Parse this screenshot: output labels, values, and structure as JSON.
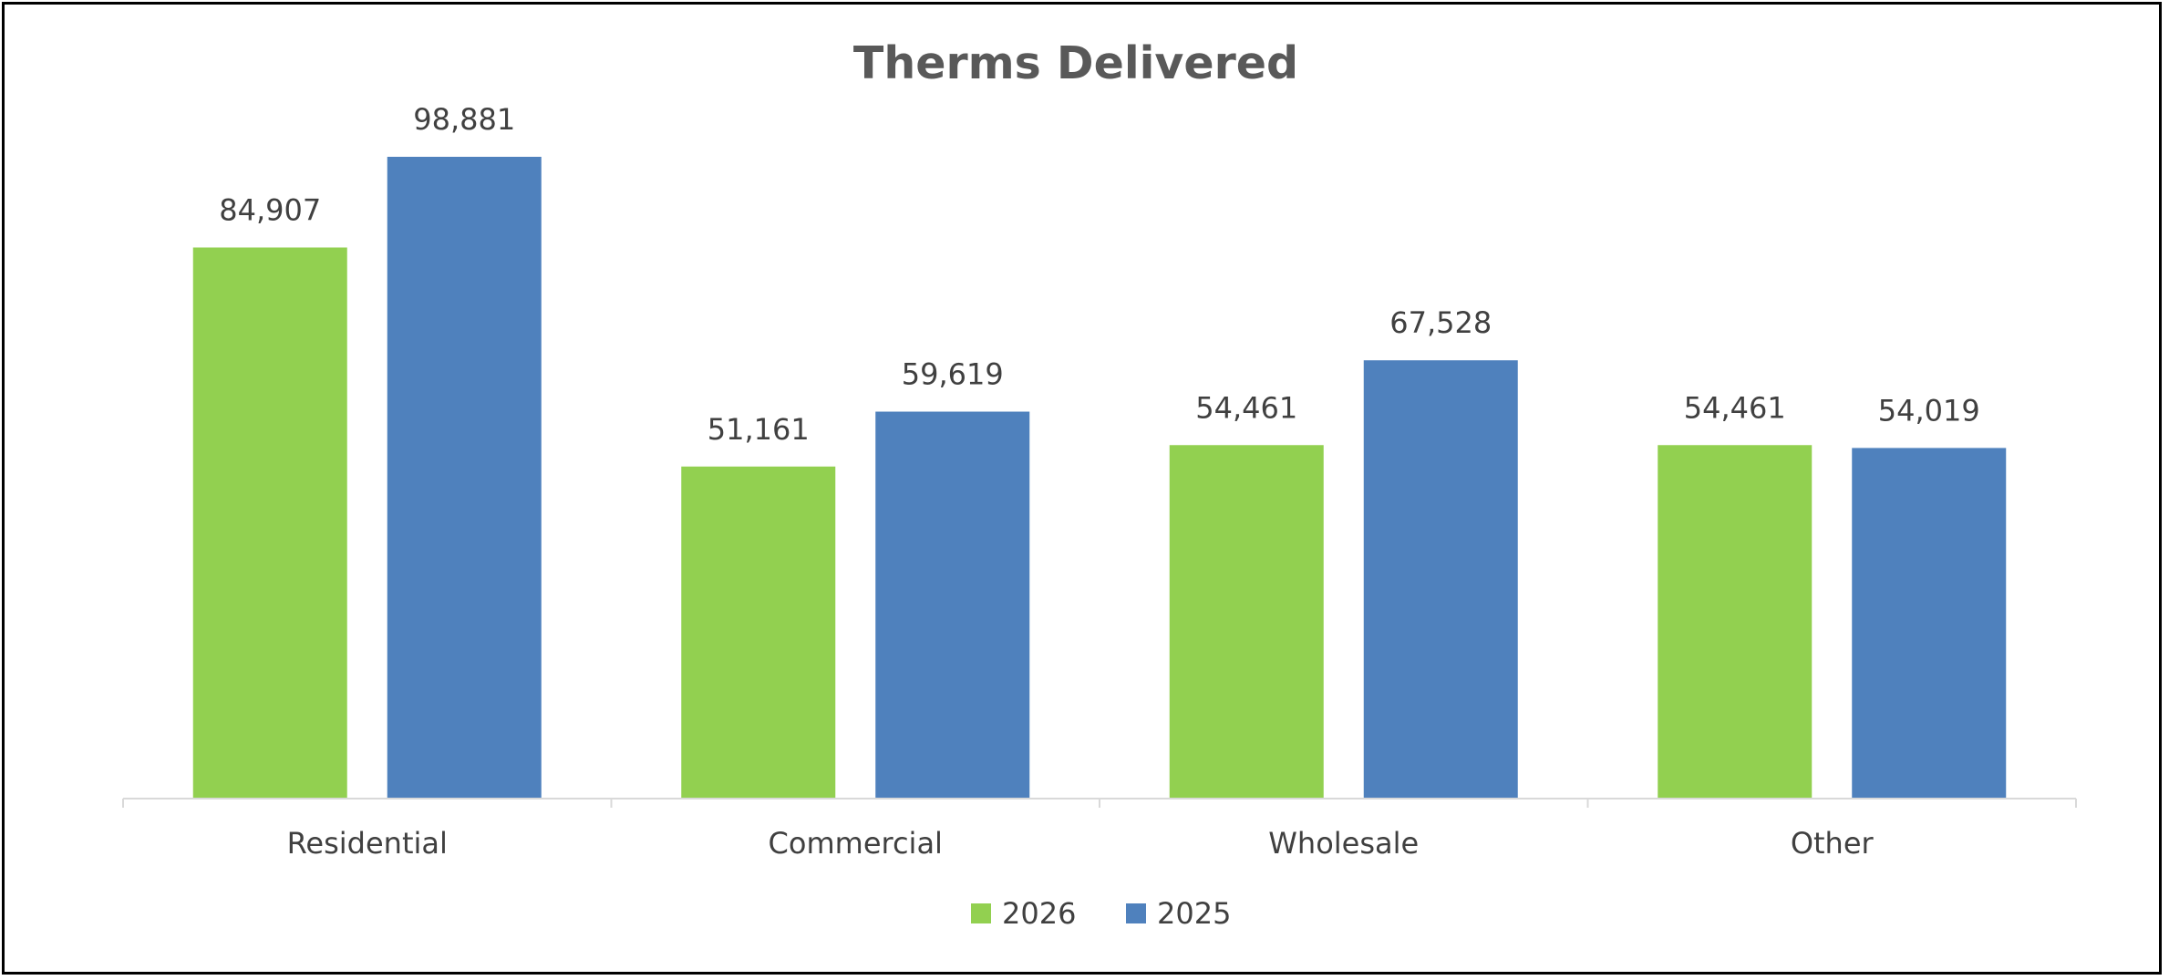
{
  "chart_data": {
    "type": "bar",
    "title": "Therms Delivered",
    "categories": [
      "Residential",
      "Commercial",
      "Wholesale",
      "Other"
    ],
    "series": [
      {
        "name": "2026",
        "color": "#92d050",
        "values": [
          84907,
          51161,
          54461,
          54461
        ],
        "labels": [
          "84,907",
          "51,161",
          "54,461",
          "54,461"
        ]
      },
      {
        "name": "2025",
        "color": "#4f81bd",
        "values": [
          98881,
          59619,
          67528,
          54019
        ],
        "labels": [
          "98,881",
          "59,619",
          "67,528",
          "54,019"
        ]
      }
    ],
    "xlabel": "",
    "ylabel": "",
    "ylim": [
      0,
      110000
    ],
    "grid": false,
    "legend": "bottom-center",
    "axis_color": "#d9d9d9"
  }
}
